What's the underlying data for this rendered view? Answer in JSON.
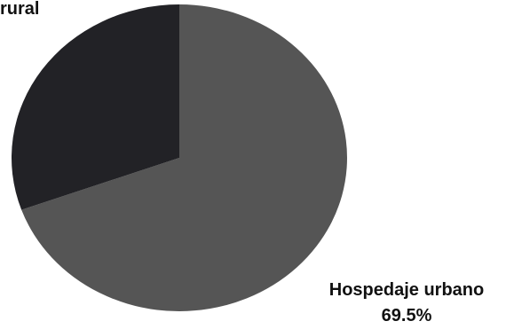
{
  "chart_data": {
    "type": "pie",
    "slices": [
      {
        "label": "Hospedaje urbano",
        "value": 69.5,
        "value_label": "69.5%",
        "color": "#555555"
      },
      {
        "label": "rural",
        "value": 30.5,
        "value_label": "",
        "color": "#222226"
      }
    ],
    "legend": "none"
  }
}
